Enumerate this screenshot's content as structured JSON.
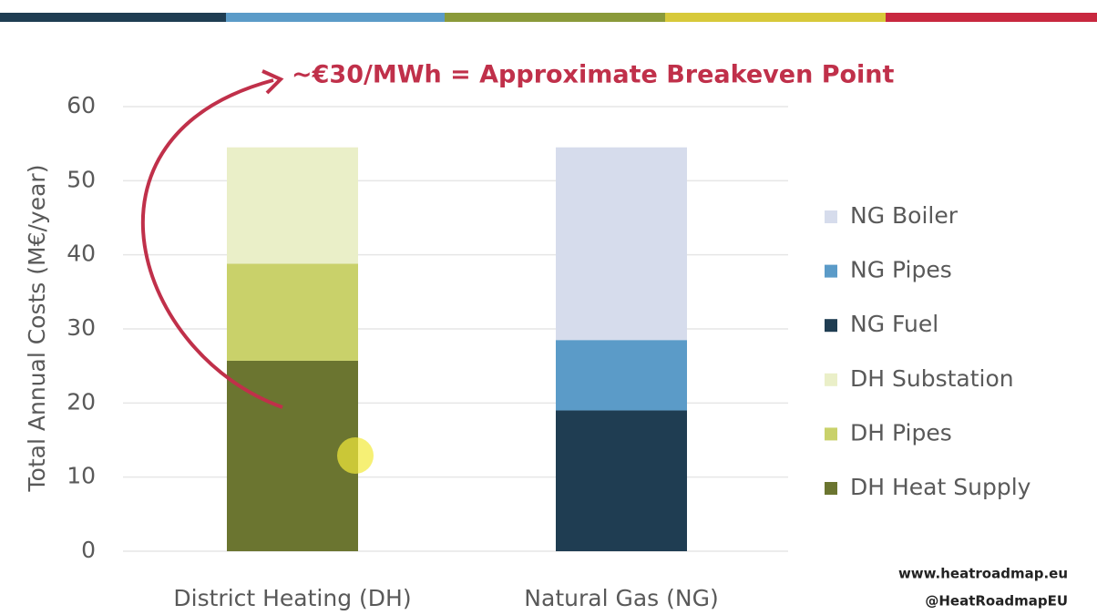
{
  "chart_data": {
    "type": "stacked_bar",
    "annotation": "~€30/MWh = Approximate Breakeven Point",
    "y_label": "Total Annual Costs (M€/year)",
    "categories": [
      "District Heating (DH)",
      "Natural Gas (NG)"
    ],
    "series": [
      {
        "name": "NG Boiler",
        "color": "#d6dcec",
        "values": [
          null,
          26
        ]
      },
      {
        "name": "NG Pipes",
        "color": "#5b9bc8",
        "values": [
          null,
          9.5
        ]
      },
      {
        "name": "NG Fuel",
        "color": "#1f3d52",
        "values": [
          null,
          19
        ]
      },
      {
        "name": "DH Substation",
        "color": "#eaefc8",
        "values": [
          15.7,
          null
        ]
      },
      {
        "name": "DH Pipes",
        "color": "#c9d16a",
        "values": [
          13.1,
          null
        ]
      },
      {
        "name": "DH Heat Supply",
        "color": "#6b7530",
        "values": [
          25.7,
          null
        ]
      }
    ],
    "ylim": [
      0,
      60
    ],
    "yticks": [
      0,
      10,
      20,
      30,
      40,
      50,
      60
    ],
    "grid": true
  },
  "footer": {
    "website": "www.heatroadmap.eu",
    "handle": "@HeatRoadmapEU"
  }
}
